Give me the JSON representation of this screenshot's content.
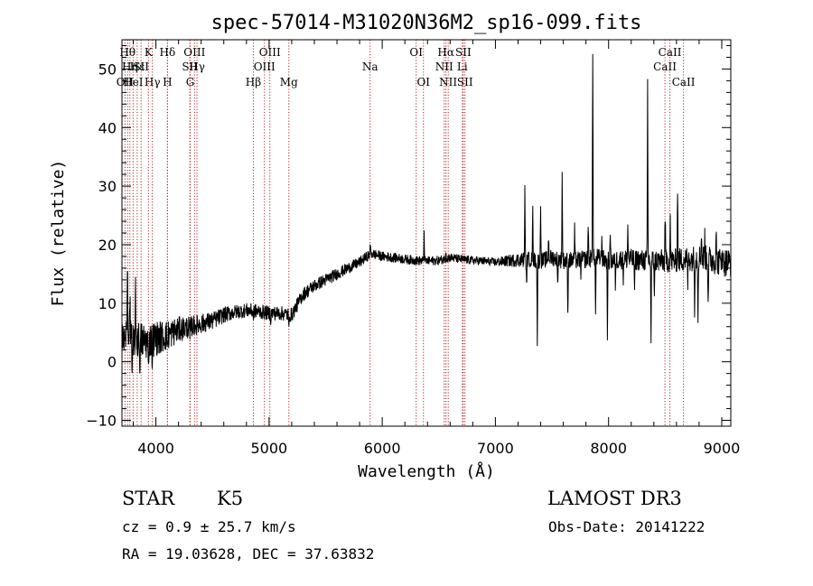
{
  "chart_data": {
    "type": "line",
    "title": "spec-57014-M31020N36M2_sp16-099.fits",
    "xlabel": "Wavelength (Å)",
    "ylabel": "Flux (relative)",
    "xlim": [
      3700,
      9080
    ],
    "ylim": [
      -11,
      55
    ],
    "xticks": [
      4000,
      5000,
      6000,
      7000,
      8000,
      9000
    ],
    "yticks": [
      -10,
      0,
      10,
      20,
      30,
      40,
      50
    ],
    "line_color": "#000000",
    "marker_color": "#b22222",
    "series": [
      {
        "name": "flux",
        "continuum": [
          [
            3700,
            5.5
          ],
          [
            3800,
            4
          ],
          [
            3900,
            3.5
          ],
          [
            4000,
            4
          ],
          [
            4100,
            4.5
          ],
          [
            4200,
            5.5
          ],
          [
            4300,
            6
          ],
          [
            4400,
            6.5
          ],
          [
            4500,
            7
          ],
          [
            4600,
            8
          ],
          [
            4700,
            8.5
          ],
          [
            4800,
            8.8
          ],
          [
            4900,
            8.6
          ],
          [
            5000,
            8.3
          ],
          [
            5100,
            8.3
          ],
          [
            5200,
            8
          ],
          [
            5300,
            11.5
          ],
          [
            5400,
            13
          ],
          [
            5500,
            14
          ],
          [
            5600,
            15
          ],
          [
            5700,
            16
          ],
          [
            5800,
            17
          ],
          [
            5900,
            18.5
          ],
          [
            6000,
            18
          ],
          [
            6100,
            17.8
          ],
          [
            6200,
            17.5
          ],
          [
            6300,
            17.3
          ],
          [
            6400,
            17.2
          ],
          [
            6500,
            17.3
          ],
          [
            6600,
            17.8
          ],
          [
            6700,
            17.5
          ],
          [
            6800,
            17.3
          ],
          [
            6900,
            17.2
          ],
          [
            7000,
            17
          ],
          [
            7100,
            17.2
          ],
          [
            7200,
            17.4
          ],
          [
            7300,
            17.5
          ],
          [
            7400,
            17.2
          ],
          [
            7500,
            17.8
          ],
          [
            7600,
            17.3
          ],
          [
            7700,
            17.3
          ],
          [
            7800,
            17.5
          ],
          [
            7900,
            17.8
          ],
          [
            8000,
            17.2
          ],
          [
            8100,
            17.5
          ],
          [
            8200,
            17.5
          ],
          [
            8300,
            17.3
          ],
          [
            8400,
            17.3
          ],
          [
            8500,
            17.2
          ],
          [
            8600,
            17.3
          ],
          [
            8700,
            17.6
          ],
          [
            8800,
            17.8
          ],
          [
            8900,
            17.5
          ],
          [
            9000,
            17
          ],
          [
            9080,
            17
          ]
        ],
        "noise": [
          [
            3700,
            3.5
          ],
          [
            4000,
            3
          ],
          [
            4300,
            1.8
          ],
          [
            4700,
            1.2
          ],
          [
            5200,
            1.2
          ],
          [
            5600,
            1
          ],
          [
            6000,
            0.8
          ],
          [
            7000,
            0.7
          ],
          [
            7250,
            1.3
          ],
          [
            8000,
            1.6
          ],
          [
            8800,
            2.2
          ],
          [
            9080,
            2.5
          ]
        ],
        "features": [
          [
            3748,
            12
          ],
          [
            3770,
            8
          ],
          [
            3790,
            -7
          ],
          [
            3820,
            10
          ],
          [
            3860,
            -5
          ],
          [
            3933,
            -6
          ],
          [
            3968,
            -4
          ],
          [
            4102,
            -2
          ],
          [
            4300,
            -2
          ],
          [
            4861,
            -1
          ],
          [
            5015,
            -1
          ],
          [
            5175,
            -3
          ],
          [
            5895,
            1.5
          ],
          [
            6370,
            5
          ],
          [
            6563,
            1.5
          ],
          [
            7260,
            12
          ],
          [
            7275,
            -5
          ],
          [
            7330,
            8
          ],
          [
            7370,
            -14
          ],
          [
            7400,
            10
          ],
          [
            7470,
            4
          ],
          [
            7550,
            -5
          ],
          [
            7590,
            15
          ],
          [
            7640,
            -10
          ],
          [
            7700,
            5
          ],
          [
            7755,
            -2
          ],
          [
            7820,
            6
          ],
          [
            7860,
            36
          ],
          [
            7885,
            -10
          ],
          [
            7940,
            4
          ],
          [
            7990,
            -12
          ],
          [
            8015,
            5
          ],
          [
            8060,
            -4
          ],
          [
            8130,
            -3
          ],
          [
            8170,
            6
          ],
          [
            8230,
            -6
          ],
          [
            8345,
            30
          ],
          [
            8375,
            -14
          ],
          [
            8405,
            -5
          ],
          [
            8500,
            8
          ],
          [
            8545,
            7
          ],
          [
            8610,
            13
          ],
          [
            8700,
            -4
          ],
          [
            8760,
            -8
          ],
          [
            8790,
            -10
          ],
          [
            8820,
            5
          ],
          [
            8850,
            4
          ],
          [
            8880,
            -7
          ],
          [
            8950,
            6
          ],
          [
            9000,
            3
          ]
        ]
      }
    ],
    "line_markers": [
      {
        "x": 3727,
        "label": "OII",
        "row": 2
      },
      {
        "x": 3750,
        "label": "Hθ",
        "row": 0
      },
      {
        "x": 3770,
        "label": "Hη",
        "row": 1
      },
      {
        "x": 3799,
        "label": "HeI",
        "row": 2
      },
      {
        "x": 3835,
        "label": "Hε",
        "row": 1
      },
      {
        "x": 3869,
        "label": "SII",
        "row": 1
      },
      {
        "x": 3934,
        "label": "K",
        "row": 0
      },
      {
        "x": 3969,
        "label": "Hγ",
        "row": 2
      },
      {
        "x": 4102,
        "label": "H",
        "row": 2
      },
      {
        "x": 4102,
        "label": "Hδ",
        "row": 0
      },
      {
        "x": 4300,
        "label": "SII",
        "row": 1
      },
      {
        "x": 4303,
        "label": "G",
        "row": 2
      },
      {
        "x": 4341,
        "label": "OIII",
        "row": 0
      },
      {
        "x": 4363,
        "label": "Hγ",
        "row": 1
      },
      {
        "x": 4861,
        "label": "Hβ",
        "row": 2
      },
      {
        "x": 4959,
        "label": "OIII",
        "row": 1
      },
      {
        "x": 5007,
        "label": "OIII",
        "row": 0
      },
      {
        "x": 5175,
        "label": "Mg",
        "row": 2
      },
      {
        "x": 5893,
        "label": "Na",
        "row": 1
      },
      {
        "x": 6300,
        "label": "OI",
        "row": 0
      },
      {
        "x": 6364,
        "label": "OI",
        "row": 2
      },
      {
        "x": 6548,
        "label": "NII",
        "row": 1
      },
      {
        "x": 6563,
        "label": "Hα",
        "row": 0
      },
      {
        "x": 6583,
        "label": "NII",
        "row": 2
      },
      {
        "x": 6708,
        "label": "Li",
        "row": 1
      },
      {
        "x": 6716,
        "label": "SII",
        "row": 0
      },
      {
        "x": 6731,
        "label": "SII",
        "row": 2
      },
      {
        "x": 8498,
        "label": "CaII",
        "row": 1
      },
      {
        "x": 8542,
        "label": "CaII",
        "row": 0
      },
      {
        "x": 8662,
        "label": "CaII",
        "row": 2
      }
    ]
  },
  "info": {
    "object_class": "STAR",
    "subclass": "K5",
    "survey": "LAMOST DR3",
    "redshift": "cz =  0.9 ± 25.7 km/s",
    "obs_date": "Obs-Date: 20141222",
    "coords": "RA =  19.03628, DEC =  37.63832"
  }
}
